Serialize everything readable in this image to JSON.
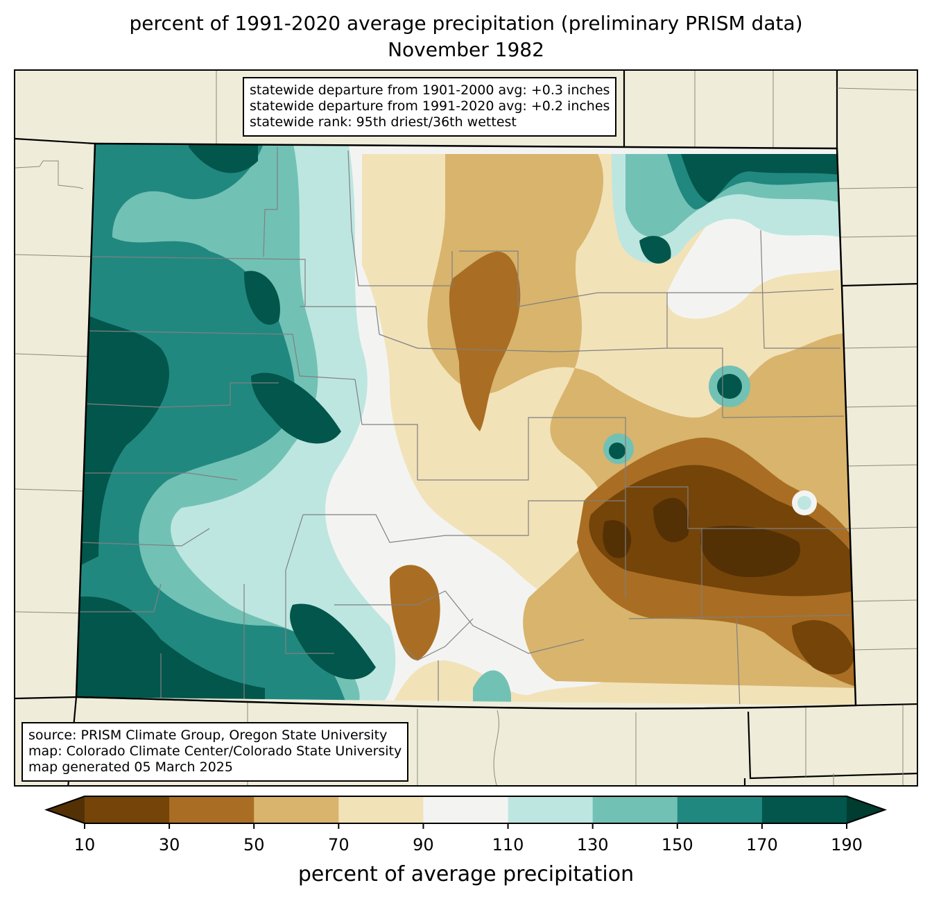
{
  "title": {
    "line1": "percent of 1991-2020 average precipitation (preliminary PRISM data)",
    "line2": "November 1982"
  },
  "stats_box": {
    "line1": "statewide departure from 1901-2000 avg: +0.3 inches",
    "line2": "statewide departure from 1991-2020 avg: +0.2 inches",
    "line3": "statewide rank: 95th driest/36th wettest"
  },
  "credits_box": {
    "line1": "source: PRISM Climate Group, Oregon State University",
    "line2": "map: Colorado Climate Center/Colorado State University",
    "line3": "map generated 05 March 2025"
  },
  "colorbar": {
    "label": "percent of average precipitation",
    "ticks": [
      "10",
      "30",
      "50",
      "70",
      "90",
      "110",
      "130",
      "150",
      "170",
      "190"
    ],
    "under_color": "#543005",
    "over_color": "#003c30",
    "bins": [
      {
        "range": "10-30",
        "color": "#744409"
      },
      {
        "range": "30-50",
        "color": "#a96e23"
      },
      {
        "range": "50-70",
        "color": "#d8b46d"
      },
      {
        "range": "70-90",
        "color": "#f2e2b8"
      },
      {
        "range": "90-110",
        "color": "#f3f4f2"
      },
      {
        "range": "110-130",
        "color": "#bde6e0"
      },
      {
        "range": "130-150",
        "color": "#72c1b5"
      },
      {
        "range": "150-170",
        "color": "#218880"
      },
      {
        "range": "170-190",
        "color": "#02564c"
      }
    ]
  },
  "map_colors": {
    "land_outside": "#efedda",
    "county_lines": "#808080",
    "state_lines": "#000000"
  }
}
